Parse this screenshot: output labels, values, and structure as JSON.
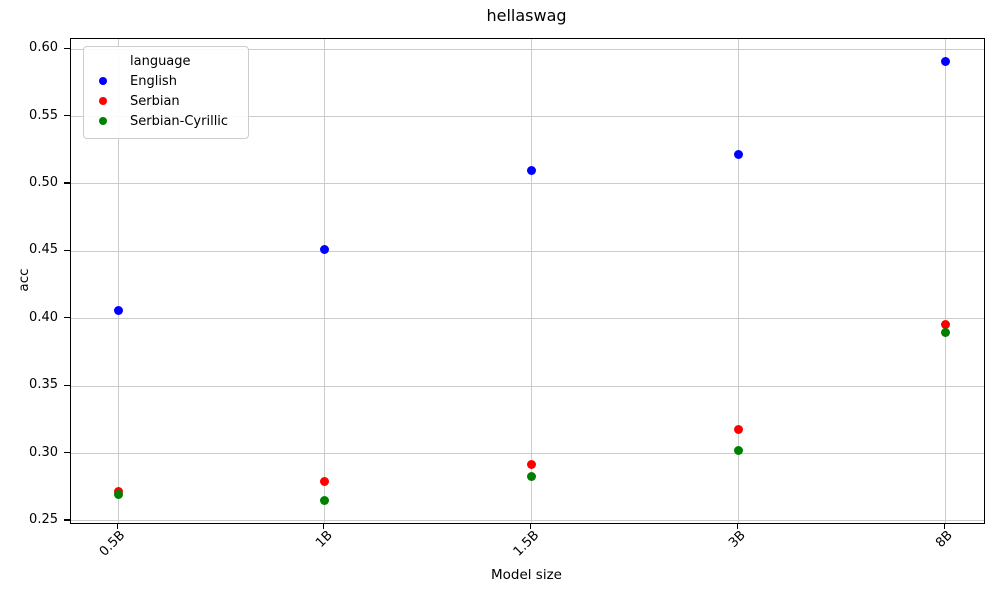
{
  "figure": {
    "background": "#ffffff",
    "grid_color": "#cccccc",
    "spine_color": "#000000"
  },
  "chart_data": {
    "type": "scatter",
    "title": "hellaswag",
    "xlabel": "Model size",
    "ylabel": "acc",
    "categories": [
      "0.5B",
      "1B",
      "1.5B",
      "3B",
      "8B"
    ],
    "series": [
      {
        "name": "English",
        "color": "#0000ff",
        "values": [
          0.406,
          0.451,
          0.51,
          0.522,
          0.591
        ]
      },
      {
        "name": "Serbian",
        "color": "#ff0000",
        "values": [
          0.272,
          0.279,
          0.292,
          0.318,
          0.396
        ]
      },
      {
        "name": "Serbian-Cyrillic",
        "color": "#008000",
        "values": [
          0.27,
          0.265,
          0.283,
          0.302,
          0.39
        ]
      }
    ],
    "ylim": [
      0.2485,
      0.6075
    ],
    "y_ticks": [
      0.25,
      0.3,
      0.35,
      0.4,
      0.45,
      0.5,
      0.55,
      0.6
    ],
    "y_tick_labels": [
      "0.25",
      "0.30",
      "0.35",
      "0.40",
      "0.45",
      "0.50",
      "0.55",
      "0.60"
    ],
    "grid": true,
    "marker": "circle",
    "legend_title": "language",
    "legend_position": "upper left"
  }
}
